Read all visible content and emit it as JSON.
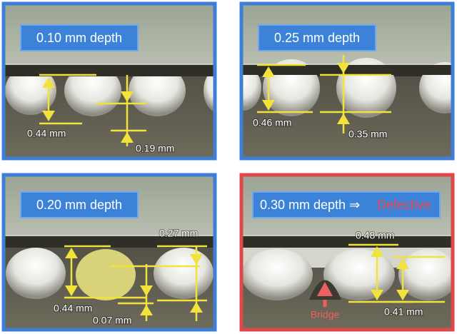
{
  "panels": [
    {
      "title": "0.10 mm depth",
      "labels": [
        "0.44 mm",
        "0.19 mm"
      ]
    },
    {
      "title": "0.25 mm depth",
      "labels": [
        "0.46 mm",
        "0.35 mm"
      ]
    },
    {
      "title": "0.20 mm depth",
      "labels": [
        "0.27 mm",
        "0.44 mm",
        "0.07 mm"
      ]
    },
    {
      "title": "0.30 mm depth ⇒",
      "status": "Defective",
      "labels": [
        "0.48 mm",
        "0.41 mm"
      ],
      "annotation": "Bridge"
    }
  ]
}
